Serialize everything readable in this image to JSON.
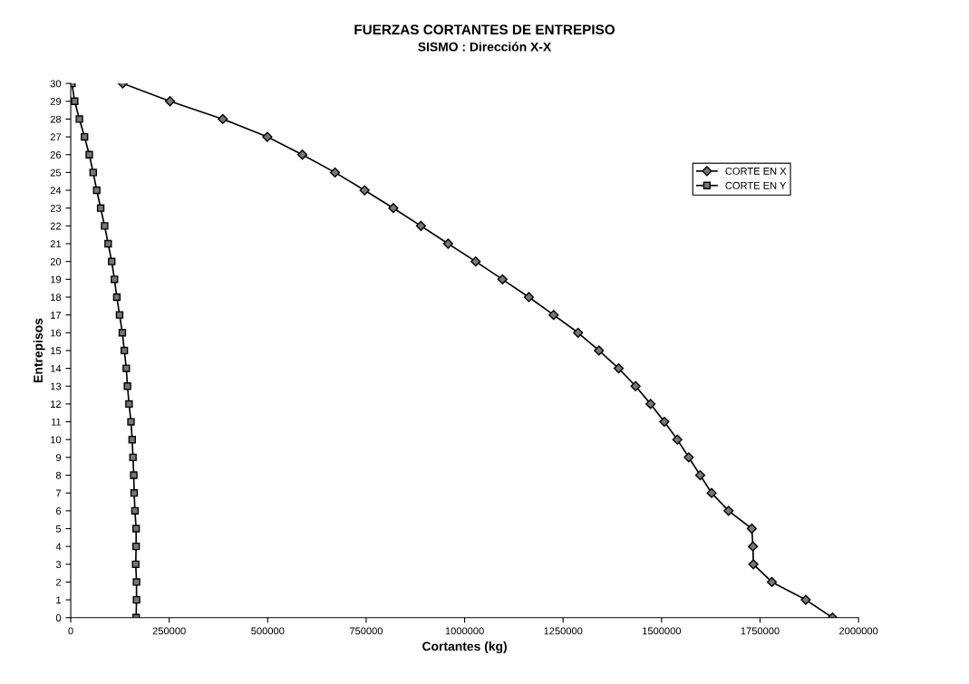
{
  "chart_data": {
    "type": "line",
    "title": "FUERZAS CORTANTES DE ENTREPISO",
    "subtitle": "SISMO : Dirección X-X",
    "xlabel": "Cortantes (kg)",
    "ylabel": "Entrepisos",
    "xlim": [
      0,
      2000000
    ],
    "xticks": [
      0,
      250000,
      500000,
      750000,
      1000000,
      1250000,
      1500000,
      1750000,
      2000000
    ],
    "ylim": [
      0,
      30
    ],
    "yticks": [
      0,
      1,
      2,
      3,
      4,
      5,
      6,
      7,
      8,
      9,
      10,
      11,
      12,
      13,
      14,
      15,
      16,
      17,
      18,
      19,
      20,
      21,
      22,
      23,
      24,
      25,
      26,
      27,
      28,
      29,
      30
    ],
    "grid": false,
    "legend": "top right",
    "line_style": "solid",
    "series": [
      {
        "name": "CORTE EN X",
        "color": "#000000",
        "marker": "diamond",
        "x": [
          1934000,
          1866000,
          1780000,
          1733000,
          1732000,
          1729000,
          1670000,
          1627000,
          1598000,
          1569000,
          1540000,
          1507000,
          1472000,
          1434000,
          1391000,
          1341000,
          1288000,
          1226000,
          1163000,
          1096000,
          1028000,
          958000,
          889000,
          819000,
          746000,
          671000,
          588000,
          499000,
          386000,
          252000,
          132000
        ],
        "values": [
          0,
          1,
          2,
          3,
          4,
          5,
          6,
          7,
          8,
          9,
          10,
          11,
          12,
          13,
          14,
          15,
          16,
          17,
          18,
          19,
          20,
          21,
          22,
          23,
          24,
          25,
          26,
          27,
          28,
          29,
          30
        ]
      },
      {
        "name": "CORTE EN Y",
        "color": "#000000",
        "marker": "square",
        "x": [
          166000,
          167000,
          167000,
          165000,
          166000,
          166000,
          163000,
          161000,
          160000,
          158000,
          156000,
          153000,
          148000,
          144000,
          141000,
          136000,
          131000,
          124000,
          117000,
          111000,
          104000,
          95000,
          86000,
          76000,
          66000,
          57000,
          47000,
          35000,
          22000,
          10000,
          3000
        ],
        "values": [
          0,
          1,
          2,
          3,
          4,
          5,
          6,
          7,
          8,
          9,
          10,
          11,
          12,
          13,
          14,
          15,
          16,
          17,
          18,
          19,
          20,
          21,
          22,
          23,
          24,
          25,
          26,
          27,
          28,
          29,
          30
        ]
      }
    ]
  }
}
